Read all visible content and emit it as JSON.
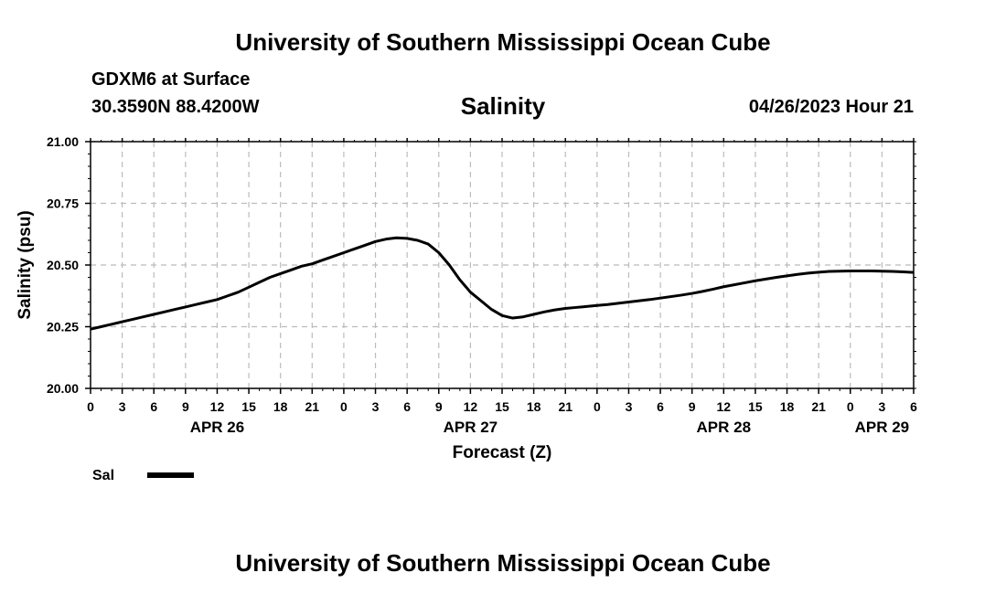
{
  "page": {
    "main_title": "University of Southern Mississippi Ocean Cube",
    "footer_title": "University of Southern Mississippi Ocean Cube",
    "station": "GDXM6 at Surface",
    "coords": "30.3590N  88.4200W",
    "datetime": "04/26/2023 Hour 21"
  },
  "chart_data": {
    "type": "line",
    "title": "Salinity",
    "xlabel": "Forecast (Z)",
    "ylabel": "Salinity (psu)",
    "xlim": [
      0,
      78
    ],
    "ylim": [
      20.0,
      21.0
    ],
    "yticks": [
      "20.00",
      "20.25",
      "20.50",
      "20.75",
      "21.00"
    ],
    "xtick_labels": [
      "0",
      "3",
      "6",
      "9",
      "12",
      "15",
      "18",
      "21",
      "0",
      "3",
      "6",
      "9",
      "12",
      "15",
      "18",
      "21",
      "0",
      "3",
      "6",
      "9",
      "12",
      "15",
      "18",
      "21",
      "0",
      "3",
      "6"
    ],
    "date_labels": [
      {
        "label": "APR 26",
        "hour": 12
      },
      {
        "label": "APR 27",
        "hour": 36
      },
      {
        "label": "APR 28",
        "hour": 60
      },
      {
        "label": "APR 29",
        "hour": 75
      }
    ],
    "grid": true,
    "legend": {
      "label": "Sal",
      "position": "bottom-left"
    },
    "series": [
      {
        "name": "Sal",
        "x": [
          0,
          1,
          2,
          3,
          4,
          5,
          6,
          7,
          8,
          9,
          10,
          11,
          12,
          13,
          14,
          15,
          16,
          17,
          18,
          19,
          20,
          21,
          22,
          23,
          24,
          25,
          26,
          27,
          28,
          29,
          30,
          31,
          32,
          33,
          34,
          35,
          36,
          37,
          38,
          39,
          40,
          41,
          42,
          43,
          44,
          45,
          46,
          47,
          48,
          49,
          50,
          51,
          52,
          53,
          54,
          55,
          56,
          57,
          58,
          59,
          60,
          61,
          62,
          63,
          64,
          65,
          66,
          67,
          68,
          69,
          70,
          71,
          72,
          73,
          74,
          75,
          76,
          77,
          78
        ],
        "values": [
          20.24,
          20.25,
          20.26,
          20.27,
          20.28,
          20.29,
          20.3,
          20.31,
          20.32,
          20.33,
          20.34,
          20.35,
          20.36,
          20.375,
          20.39,
          20.41,
          20.43,
          20.45,
          20.465,
          20.48,
          20.495,
          20.505,
          20.52,
          20.535,
          20.55,
          20.565,
          20.58,
          20.595,
          20.605,
          20.61,
          20.608,
          20.6,
          20.585,
          20.55,
          20.5,
          20.44,
          20.39,
          20.355,
          20.32,
          20.295,
          20.285,
          20.29,
          20.3,
          20.31,
          20.318,
          20.324,
          20.328,
          20.332,
          20.336,
          20.34,
          20.345,
          20.35,
          20.355,
          20.36,
          20.366,
          20.372,
          20.378,
          20.385,
          20.393,
          20.402,
          20.412,
          20.42,
          20.428,
          20.436,
          20.443,
          20.45,
          20.456,
          20.462,
          20.467,
          20.471,
          20.474,
          20.475,
          20.476,
          20.476,
          20.476,
          20.475,
          20.474,
          20.472,
          20.47
        ]
      }
    ]
  }
}
